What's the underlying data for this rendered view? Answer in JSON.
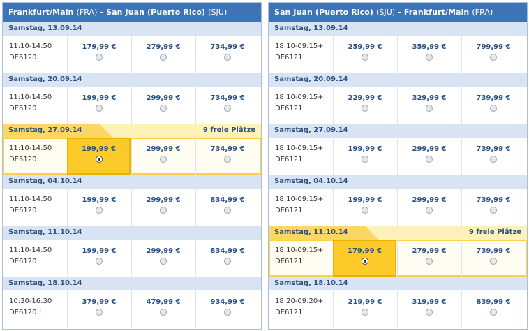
{
  "outbound": {
    "origin": "Frankfurt/Main",
    "origin_code": "(FRA)",
    "separator": "-",
    "destination": "San Juan (Puerto Rico)",
    "destination_code": "(SJU)",
    "days": [
      {
        "date": "Samstag, 13.09.14",
        "seats": "",
        "time": "11:10-14:50",
        "flight": "DE6120",
        "prices": [
          "179,99 €",
          "279,99 €",
          "734,99 €"
        ]
      },
      {
        "date": "Samstag, 20.09.14",
        "seats": "",
        "time": "11:10-14:50",
        "flight": "DE6120",
        "prices": [
          "199,99 €",
          "299,99 €",
          "734,99 €"
        ]
      },
      {
        "date": "Samstag, 27.09.14",
        "seats": "9 freie Plätze",
        "time": "11:10-14:50",
        "flight": "DE6120",
        "prices": [
          "199,99 €",
          "299,99 €",
          "734,99 €"
        ]
      },
      {
        "date": "Samstag, 04.10.14",
        "seats": "",
        "time": "11:10-14:50",
        "flight": "DE6120",
        "prices": [
          "199,99 €",
          "299,99 €",
          "834,99 €"
        ]
      },
      {
        "date": "Samstag, 11.10.14",
        "seats": "",
        "time": "11:10-14:50",
        "flight": "DE6120",
        "prices": [
          "199,99 €",
          "299,99 €",
          "834,99 €"
        ]
      },
      {
        "date": "Samstag, 18.10.14",
        "seats": "",
        "time": "10:30-16:30",
        "flight": "DE6120 !",
        "prices": [
          "379,99 €",
          "479,99 €",
          "934,99 €"
        ]
      }
    ]
  },
  "return": {
    "origin": "San Juan (Puerto Rico)",
    "origin_code": "(SJU)",
    "separator": "-",
    "destination": "Frankfurt/Main",
    "destination_code": "(FRA)",
    "days": [
      {
        "date": "Samstag, 13.09.14",
        "seats": "",
        "time": "18:10-09:15+",
        "flight": "DE6121",
        "prices": [
          "259,99 €",
          "359,99 €",
          "799,99 €"
        ]
      },
      {
        "date": "Samstag, 20.09.14",
        "seats": "",
        "time": "18:10-09:15+",
        "flight": "DE6121",
        "prices": [
          "229,99 €",
          "329,99 €",
          "739,99 €"
        ]
      },
      {
        "date": "Samstag, 27.09.14",
        "seats": "",
        "time": "18:10-09:15+",
        "flight": "DE6121",
        "prices": [
          "199,99 €",
          "299,99 €",
          "739,99 €"
        ]
      },
      {
        "date": "Samstag, 04.10.14",
        "seats": "",
        "time": "18:10-09:15+",
        "flight": "DE6121",
        "prices": [
          "199,99 €",
          "299,99 €",
          "739,99 €"
        ]
      },
      {
        "date": "Samstag, 11.10.14",
        "seats": "9 freie Plätze",
        "time": "18:10-09:15+",
        "flight": "DE6121",
        "prices": [
          "179,99 €",
          "279,99 €",
          "739,99 €"
        ]
      },
      {
        "date": "Samstag, 18.10.14",
        "seats": "",
        "time": "18:20-09:20+",
        "flight": "DE6121",
        "prices": [
          "219,99 €",
          "319,99 €",
          "839,99 €"
        ]
      }
    ]
  },
  "colors": {
    "header_bg": "#3d74b6",
    "day_row_bg": "#d8e4f3",
    "selected_fare_bg": "#fdcb29",
    "price_text": "#274f82"
  }
}
